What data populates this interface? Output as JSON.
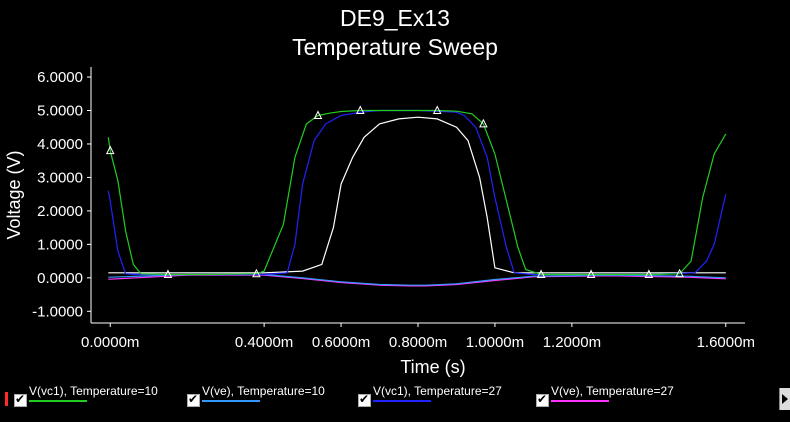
{
  "chart_data": {
    "type": "line",
    "title": [
      "DE9_Ex13",
      "Temperature Sweep"
    ],
    "xlabel": "Time (s)",
    "ylabel": "Voltage (V)",
    "xlim": [
      -5e-05,
      0.00165
    ],
    "ylim": [
      -1.35,
      6.3
    ],
    "xticks": [
      {
        "v": 0.0,
        "label": "0.0000m"
      },
      {
        "v": 0.0004,
        "label": "0.4000m"
      },
      {
        "v": 0.0006,
        "label": "0.6000m"
      },
      {
        "v": 0.0008,
        "label": "0.8000m"
      },
      {
        "v": 0.001,
        "label": "1.0000m"
      },
      {
        "v": 0.0012,
        "label": "1.2000m"
      },
      {
        "v": 0.0016,
        "label": "1.6000m"
      }
    ],
    "yticks": [
      {
        "v": 6.0,
        "label": "6.0000"
      },
      {
        "v": 5.0,
        "label": "5.0000"
      },
      {
        "v": 4.0,
        "label": "4.0000"
      },
      {
        "v": 3.0,
        "label": "3.0000"
      },
      {
        "v": 2.0,
        "label": "2.0000"
      },
      {
        "v": 1.0,
        "label": "1.0000"
      },
      {
        "v": 0.0,
        "label": "0.0000"
      },
      {
        "v": -1.0,
        "label": "-1.0000"
      }
    ],
    "grid": false,
    "legend_position": "bottom",
    "series": [
      {
        "name": "V(vc1), Temperature=10",
        "color": "#22cc22",
        "marker": "triangle",
        "x": [
          -5e-06,
          0.0,
          2e-05,
          4e-05,
          6e-05,
          8e-05,
          0.00015,
          0.00025,
          0.00038,
          0.0004,
          0.00045,
          0.00048,
          0.00051,
          0.00054,
          0.00057,
          0.0006,
          0.00065,
          0.0007,
          0.00075,
          0.0008,
          0.00085,
          0.0009,
          0.00094,
          0.00097,
          0.001,
          0.00103,
          0.00106,
          0.00108,
          0.00112,
          0.00125,
          0.0014,
          0.00148,
          0.00151,
          0.00154,
          0.00157,
          0.0016
        ],
        "y": [
          4.2,
          3.8,
          2.9,
          1.4,
          0.4,
          0.12,
          0.1,
          0.1,
          0.12,
          0.2,
          1.6,
          3.6,
          4.6,
          4.85,
          4.92,
          4.97,
          5.0,
          5.0,
          5.0,
          5.0,
          5.0,
          4.98,
          4.9,
          4.6,
          3.7,
          2.3,
          0.9,
          0.25,
          0.1,
          0.1,
          0.1,
          0.12,
          0.5,
          2.4,
          3.7,
          4.3
        ]
      },
      {
        "name": "V(ve), Temperature=10",
        "color": "#3399ff",
        "marker": "none",
        "x": [
          -5e-06,
          0.0,
          0.0002,
          0.0004,
          0.0005,
          0.0006,
          0.0007,
          0.00078,
          0.0008,
          0.00082,
          0.0009,
          0.001,
          0.0011,
          0.0013,
          0.0015,
          0.0016
        ],
        "y": [
          0.02,
          0.02,
          0.1,
          0.1,
          0.0,
          -0.12,
          -0.2,
          -0.22,
          -0.22,
          -0.22,
          -0.18,
          -0.05,
          0.05,
          0.08,
          0.05,
          0.0
        ]
      },
      {
        "name": "V(vc1), Temperature=27",
        "color": "#2222ff",
        "marker": "none",
        "x": [
          -5e-06,
          0.0,
          2e-05,
          4e-05,
          8e-05,
          0.00015,
          0.00025,
          0.0004,
          0.00046,
          0.00048,
          0.0005,
          0.00053,
          0.00056,
          0.0006,
          0.00065,
          0.0007,
          0.0008,
          0.0009,
          0.00092,
          0.00095,
          0.00098,
          0.001,
          0.00103,
          0.00105,
          0.0011,
          0.0012,
          0.0014,
          0.00152,
          0.00155,
          0.00157,
          0.00159,
          0.0016
        ],
        "y": [
          2.6,
          2.3,
          0.8,
          0.12,
          0.1,
          0.1,
          0.1,
          0.1,
          0.15,
          1.0,
          2.8,
          4.1,
          4.6,
          4.85,
          4.95,
          5.0,
          5.0,
          4.95,
          4.85,
          4.5,
          3.6,
          2.4,
          0.9,
          0.15,
          0.1,
          0.1,
          0.1,
          0.15,
          0.5,
          1.0,
          2.0,
          2.5
        ]
      },
      {
        "name": "V(ve), Temperature=27",
        "color": "#ff33ff",
        "marker": "none",
        "x": [
          -5e-06,
          0.0,
          0.0002,
          0.0004,
          0.0005,
          0.0006,
          0.0007,
          0.00078,
          0.0008,
          0.00082,
          0.0009,
          0.001,
          0.0011,
          0.0013,
          0.0015,
          0.0016
        ],
        "y": [
          -0.04,
          -0.04,
          0.08,
          0.08,
          -0.02,
          -0.14,
          -0.22,
          -0.24,
          -0.24,
          -0.24,
          -0.2,
          -0.08,
          0.03,
          0.06,
          0.02,
          -0.03
        ]
      },
      {
        "name": "",
        "color": "#ffffff",
        "marker": "none",
        "x": [
          -5e-06,
          0.0,
          0.0002,
          0.0004,
          0.0005,
          0.00055,
          0.00058,
          0.0006,
          0.00063,
          0.00066,
          0.0007,
          0.00075,
          0.0008,
          0.00085,
          0.0009,
          0.00093,
          0.00096,
          0.00098,
          0.001,
          0.00105,
          0.0012,
          0.0014,
          0.0016
        ],
        "y": [
          0.15,
          0.15,
          0.15,
          0.15,
          0.2,
          0.4,
          1.5,
          2.8,
          3.6,
          4.2,
          4.6,
          4.75,
          4.8,
          4.75,
          4.5,
          4.1,
          3.0,
          1.8,
          0.3,
          0.15,
          0.15,
          0.15,
          0.15
        ]
      }
    ]
  }
}
